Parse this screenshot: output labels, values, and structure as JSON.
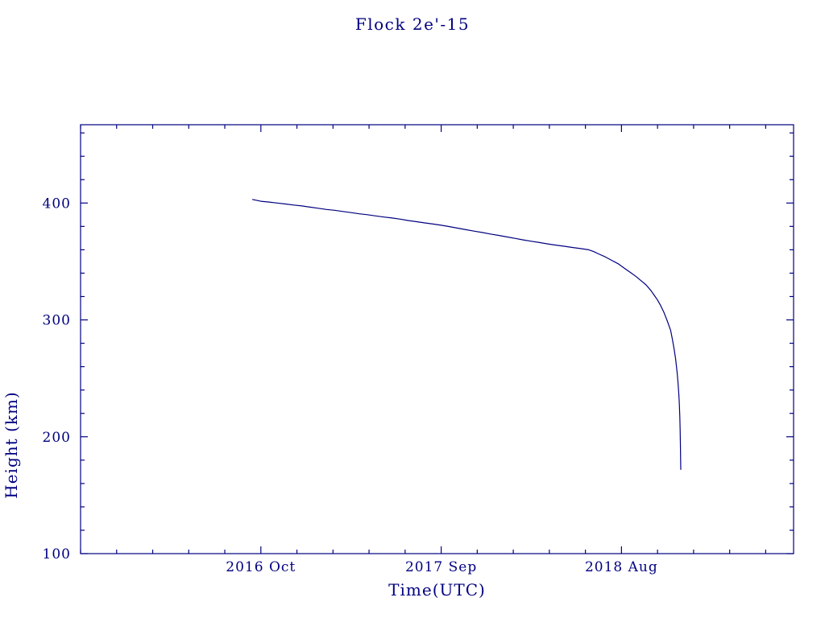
{
  "title": "Flock 2e'-15",
  "chart_data": {
    "type": "line",
    "title": "Flock 2e'-15",
    "xlabel": "Time(UTC)",
    "ylabel": "Height (km)",
    "x_unit": "months_since_2016_Oct",
    "xlim": [
      -11,
      32.5
    ],
    "ylim": [
      100,
      467
    ],
    "x_ticks": [
      {
        "value": 0,
        "label": "2016 Oct"
      },
      {
        "value": 11,
        "label": "2017 Sep"
      },
      {
        "value": 22,
        "label": "2018 Aug"
      }
    ],
    "y_ticks": [
      {
        "value": 100,
        "label": "100"
      },
      {
        "value": 200,
        "label": "200"
      },
      {
        "value": 300,
        "label": "300"
      },
      {
        "value": 400,
        "label": "400"
      }
    ],
    "minor_x_step": 2.2,
    "minor_y_step": 20,
    "grid": false,
    "legend": "none",
    "line_color": "#000080",
    "axis_color": "#000080",
    "series": [
      {
        "name": "height_km",
        "points": [
          [
            -0.5,
            403
          ],
          [
            0,
            401.5
          ],
          [
            0.5,
            400.8
          ],
          [
            1,
            400
          ],
          [
            1.5,
            399.2
          ],
          [
            2,
            398.3
          ],
          [
            2.5,
            397.5
          ],
          [
            3,
            396.5
          ],
          [
            3.5,
            395.5
          ],
          [
            4,
            394.5
          ],
          [
            4.5,
            393.8
          ],
          [
            5,
            392.8
          ],
          [
            5.5,
            391.8
          ],
          [
            6,
            390.8
          ],
          [
            6.5,
            390
          ],
          [
            7,
            389
          ],
          [
            7.5,
            388
          ],
          [
            8,
            387.2
          ],
          [
            8.5,
            386.2
          ],
          [
            9,
            385
          ],
          [
            9.5,
            384
          ],
          [
            10,
            383
          ],
          [
            10.5,
            382
          ],
          [
            11,
            381
          ],
          [
            11.5,
            379.8
          ],
          [
            12,
            378.5
          ],
          [
            12.5,
            377.2
          ],
          [
            13,
            376
          ],
          [
            13.5,
            374.8
          ],
          [
            14,
            373.5
          ],
          [
            14.5,
            372.3
          ],
          [
            15,
            371
          ],
          [
            15.5,
            369.8
          ],
          [
            16,
            368.5
          ],
          [
            16.5,
            367.3
          ],
          [
            17,
            366.2
          ],
          [
            17.5,
            365
          ],
          [
            18,
            364
          ],
          [
            18.5,
            363
          ],
          [
            19,
            362
          ],
          [
            19.5,
            361
          ],
          [
            20,
            360
          ],
          [
            20.3,
            358.5
          ],
          [
            20.6,
            356.5
          ],
          [
            21,
            354
          ],
          [
            21.4,
            351
          ],
          [
            21.8,
            348
          ],
          [
            22,
            346
          ],
          [
            22.3,
            343
          ],
          [
            22.6,
            340
          ],
          [
            22.9,
            337
          ],
          [
            23.2,
            333.5
          ],
          [
            23.5,
            330
          ],
          [
            23.8,
            325
          ],
          [
            24,
            321
          ],
          [
            24.2,
            317
          ],
          [
            24.4,
            312
          ],
          [
            24.6,
            306
          ],
          [
            24.8,
            299
          ],
          [
            25,
            291
          ],
          [
            25.1,
            284
          ],
          [
            25.2,
            276
          ],
          [
            25.3,
            267
          ],
          [
            25.35,
            261
          ],
          [
            25.4,
            254
          ],
          [
            25.45,
            246
          ],
          [
            25.5,
            236
          ],
          [
            25.53,
            228
          ],
          [
            25.56,
            217
          ],
          [
            25.58,
            206
          ],
          [
            25.6,
            190
          ],
          [
            25.61,
            180
          ],
          [
            25.62,
            172
          ]
        ]
      }
    ]
  }
}
